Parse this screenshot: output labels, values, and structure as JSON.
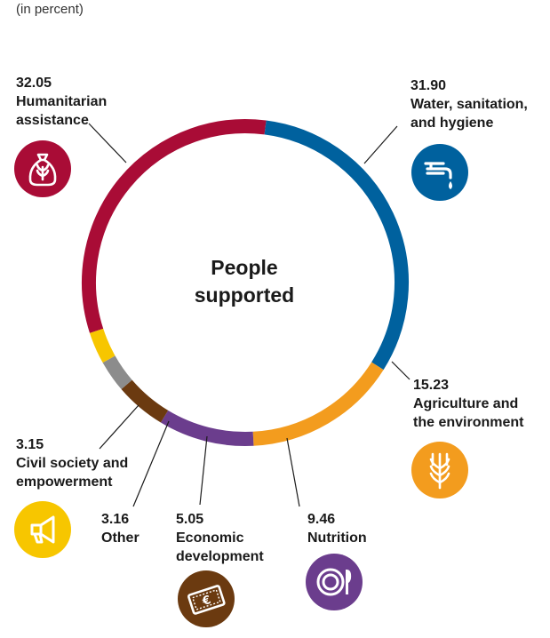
{
  "subtitle": "(in percent)",
  "chart_data": {
    "type": "pie",
    "variant": "donut",
    "title": "",
    "subtitle": "(in percent)",
    "center_label": "People\nsupported",
    "unit": "percent",
    "slices": [
      {
        "label": "Water, sanitation,\nand hygiene",
        "value": 31.9,
        "color": "#00619e",
        "icon": "faucet-icon"
      },
      {
        "label": "Agriculture and\nthe environment",
        "value": 15.23,
        "color": "#f39c1e",
        "icon": "wheat-icon"
      },
      {
        "label": "Nutrition",
        "value": 9.46,
        "color": "#6b3d8d",
        "icon": "plate-cutlery-icon"
      },
      {
        "label": "Economic\ndevelopment",
        "value": 5.05,
        "color": "#6b3a10",
        "icon": "euro-banknote-icon"
      },
      {
        "label": "Other",
        "value": 3.16,
        "color": "#8c8c8c",
        "icon": ""
      },
      {
        "label": "Civil society and\nempowerment",
        "value": 3.15,
        "color": "#f7c600",
        "icon": "megaphone-icon"
      },
      {
        "label": "Humanitarian\nassistance",
        "value": 32.05,
        "color": "#a90c36",
        "icon": "grain-sack-icon"
      }
    ]
  }
}
